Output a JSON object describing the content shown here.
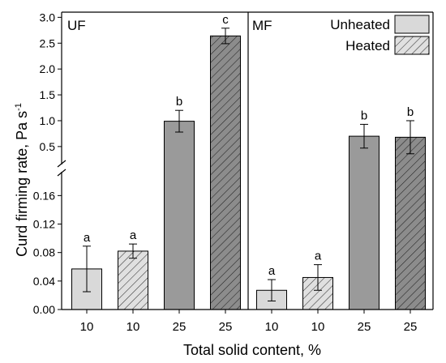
{
  "chart_data": {
    "type": "bar",
    "xlabel": "Total solid content, %",
    "ylabel": "Curd firming rate, Pa s",
    "ylabel_sup": "-1",
    "y_axis_break": {
      "lower_range": [
        0,
        0.19
      ],
      "upper_range": [
        0.2,
        3.1
      ],
      "lower_ticks": [
        "0.00",
        "0.04",
        "0.08",
        "0.12",
        "0.16"
      ],
      "upper_ticks": [
        "0.5",
        "1.0",
        "1.5",
        "2.0",
        "2.5",
        "3.0"
      ]
    },
    "legend": {
      "placement": "top-right",
      "entries": [
        {
          "name": "Unheated",
          "pattern": "solid"
        },
        {
          "name": "Heated",
          "pattern": "hatched"
        }
      ]
    },
    "panels": [
      {
        "label": "UF",
        "categories": [
          "10",
          "10",
          "25",
          "25"
        ],
        "bars": [
          {
            "treatment": "Unheated",
            "value": 0.057,
            "error": 0.032,
            "letter": "a"
          },
          {
            "treatment": "Heated",
            "value": 0.082,
            "error": 0.01,
            "letter": "a"
          },
          {
            "treatment": "Unheated",
            "value": 0.99,
            "error": 0.21,
            "letter": "b"
          },
          {
            "treatment": "Heated",
            "value": 2.64,
            "error": 0.15,
            "letter": "c"
          }
        ]
      },
      {
        "label": "MF",
        "categories": [
          "10",
          "10",
          "25",
          "25"
        ],
        "bars": [
          {
            "treatment": "Unheated",
            "value": 0.027,
            "error": 0.015,
            "letter": "a"
          },
          {
            "treatment": "Heated",
            "value": 0.045,
            "error": 0.018,
            "letter": "a"
          },
          {
            "treatment": "Unheated",
            "value": 0.7,
            "error": 0.23,
            "letter": "b"
          },
          {
            "treatment": "Heated",
            "value": 0.68,
            "error": 0.32,
            "letter": "b"
          }
        ]
      }
    ],
    "colors": {
      "unheated_light": "#d9d9d9",
      "heated_light": "#e0e0e0",
      "unheated_dark": "#9a9a9a",
      "heated_dark": "#8c8c8c",
      "hatch": "#333333"
    }
  }
}
